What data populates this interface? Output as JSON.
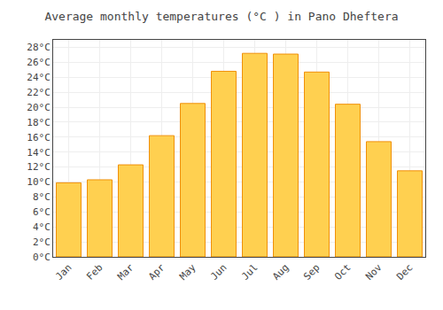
{
  "chart_data": {
    "type": "bar",
    "title": "Average monthly temperatures (°C ) in Pano Dheftera",
    "categories": [
      "Jan",
      "Feb",
      "Mar",
      "Apr",
      "May",
      "Jun",
      "Jul",
      "Aug",
      "Sep",
      "Oct",
      "Nov",
      "Dec"
    ],
    "values": [
      9.9,
      10.3,
      12.3,
      16.2,
      20.5,
      24.8,
      27.2,
      27.1,
      24.7,
      20.4,
      15.4,
      11.5
    ],
    "color": "#FFD050",
    "ylim": [
      0,
      29
    ],
    "yticks": [
      {
        "value": 0,
        "label": "0°C"
      },
      {
        "value": 2,
        "label": "2°C"
      },
      {
        "value": 4,
        "label": "4°C"
      },
      {
        "value": 6,
        "label": "6°C"
      },
      {
        "value": 8,
        "label": "8°C"
      },
      {
        "value": 10,
        "label": "10°C"
      },
      {
        "value": 12,
        "label": "12°C"
      },
      {
        "value": 14,
        "label": "14°C"
      },
      {
        "value": 16,
        "label": "16°C"
      },
      {
        "value": 18,
        "label": "18°C"
      },
      {
        "value": 20,
        "label": "20°C"
      },
      {
        "value": 22,
        "label": "22°C"
      },
      {
        "value": 24,
        "label": "24°C"
      },
      {
        "value": 26,
        "label": "26°C"
      },
      {
        "value": 28,
        "label": "28°C"
      }
    ],
    "grid": true
  }
}
